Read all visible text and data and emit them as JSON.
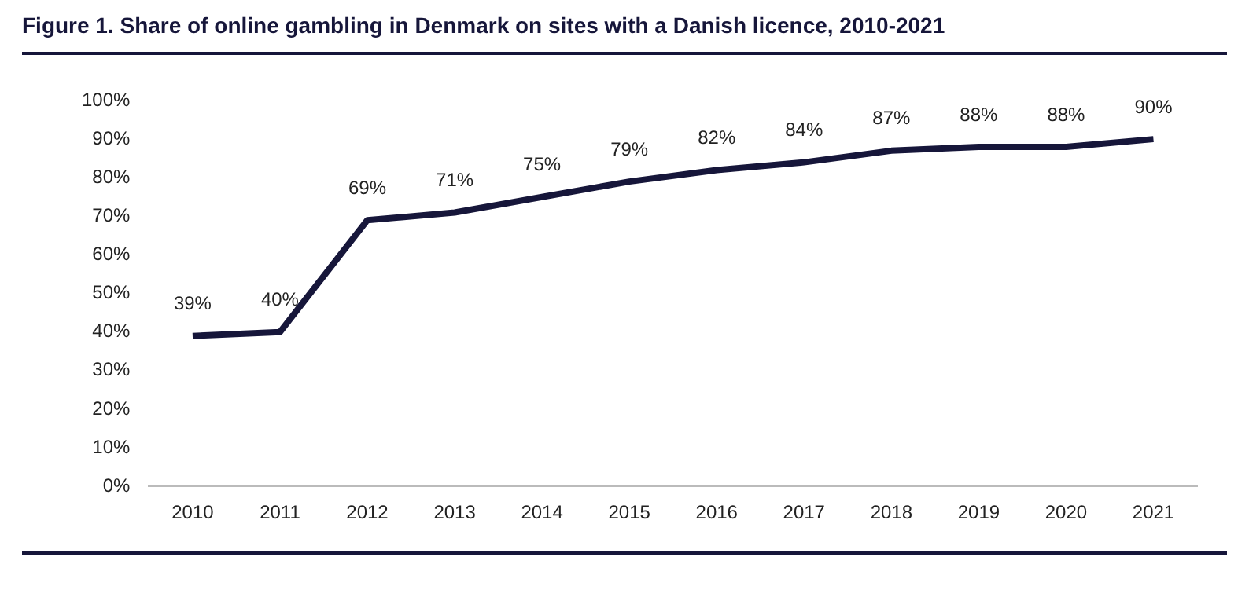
{
  "chart_data": {
    "type": "line",
    "title": "Figure 1. Share of online gambling in Denmark on sites with a Danish licence, 2010-2021",
    "categories": [
      "2010",
      "2011",
      "2012",
      "2013",
      "2014",
      "2015",
      "2016",
      "2017",
      "2018",
      "2019",
      "2020",
      "2021"
    ],
    "series": [
      {
        "color": "#16163a",
        "values": [
          39,
          40,
          69,
          71,
          75,
          79,
          82,
          84,
          87,
          88,
          88,
          90
        ]
      }
    ],
    "ylim": [
      0,
      100
    ],
    "yticks": [
      {
        "value": 0,
        "label": "0%"
      },
      {
        "value": 10,
        "label": "10%"
      },
      {
        "value": 20,
        "label": "20%"
      },
      {
        "value": 30,
        "label": "30%"
      },
      {
        "value": 40,
        "label": "40%"
      },
      {
        "value": 50,
        "label": "50%"
      },
      {
        "value": 60,
        "label": "60%"
      },
      {
        "value": 70,
        "label": "70%"
      },
      {
        "value": 80,
        "label": "80%"
      },
      {
        "value": 90,
        "label": "90%"
      },
      {
        "value": 100,
        "label": "100%"
      }
    ],
    "value_labels": [
      "39%",
      "40%",
      "69%",
      "71%",
      "75%",
      "79%",
      "82%",
      "84%",
      "87%",
      "88%",
      "88%",
      "90%"
    ],
    "grid": false,
    "legend": false,
    "marker": "none",
    "line_style": "solid"
  }
}
